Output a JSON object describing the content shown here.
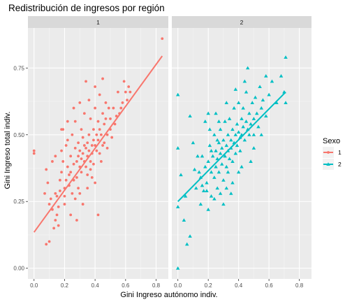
{
  "chart_data": {
    "type": "scatter",
    "title": "Redistribución de ingresos por región",
    "xlabel": "Gini Ingreso autónomo indiv.",
    "ylabel": "Gini Ingreso total indiv.",
    "xlim": [
      -0.04,
      0.88
    ],
    "ylim": [
      -0.04,
      0.9
    ],
    "xticks": [
      0.0,
      0.2,
      0.4,
      0.6,
      0.8
    ],
    "xtick_labels": [
      "0.0",
      "0.2",
      "0.4",
      "0.6",
      "0.8"
    ],
    "yticks": [
      0.0,
      0.25,
      0.5,
      0.75
    ],
    "ytick_labels": [
      "0.00",
      "0.25",
      "0.50",
      "0.75"
    ],
    "grid": true,
    "legend": {
      "title": "Sexo",
      "position": "right",
      "entries": [
        {
          "label": "1",
          "color": "#F8766D",
          "shape": "circle"
        },
        {
          "label": "2",
          "color": "#00BFC4",
          "shape": "triangle"
        }
      ]
    },
    "panels": [
      {
        "strip": "1",
        "series": "1",
        "color": "#F8766D",
        "shape": "circle",
        "fit_line": {
          "x": [
            0.0,
            0.84
          ],
          "y": [
            0.135,
            0.795
          ]
        },
        "points": [
          [
            0.0,
            0.44
          ],
          [
            0.0,
            0.43
          ],
          [
            0.07,
            0.28
          ],
          [
            0.08,
            0.09
          ],
          [
            0.1,
            0.1
          ],
          [
            0.08,
            0.37
          ],
          [
            0.09,
            0.32
          ],
          [
            0.1,
            0.24
          ],
          [
            0.11,
            0.26
          ],
          [
            0.12,
            0.4
          ],
          [
            0.12,
            0.22
          ],
          [
            0.13,
            0.15
          ],
          [
            0.14,
            0.18
          ],
          [
            0.14,
            0.28
          ],
          [
            0.15,
            0.2
          ],
          [
            0.15,
            0.27
          ],
          [
            0.16,
            0.23
          ],
          [
            0.16,
            0.16
          ],
          [
            0.17,
            0.29
          ],
          [
            0.17,
            0.33
          ],
          [
            0.18,
            0.44
          ],
          [
            0.18,
            0.36
          ],
          [
            0.19,
            0.52
          ],
          [
            0.19,
            0.4
          ],
          [
            0.2,
            0.3
          ],
          [
            0.2,
            0.24
          ],
          [
            0.21,
            0.33
          ],
          [
            0.21,
            0.46
          ],
          [
            0.22,
            0.48
          ],
          [
            0.22,
            0.38
          ],
          [
            0.23,
            0.31
          ],
          [
            0.23,
            0.35
          ],
          [
            0.24,
            0.36
          ],
          [
            0.24,
            0.42
          ],
          [
            0.25,
            0.28
          ],
          [
            0.25,
            0.5
          ],
          [
            0.26,
            0.39
          ],
          [
            0.26,
            0.33
          ],
          [
            0.27,
            0.45
          ],
          [
            0.27,
            0.55
          ],
          [
            0.28,
            0.4
          ],
          [
            0.28,
            0.34
          ],
          [
            0.29,
            0.42
          ],
          [
            0.29,
            0.47
          ],
          [
            0.3,
            0.38
          ],
          [
            0.3,
            0.44
          ],
          [
            0.31,
            0.52
          ],
          [
            0.31,
            0.36
          ],
          [
            0.32,
            0.43
          ],
          [
            0.32,
            0.49
          ],
          [
            0.33,
            0.4
          ],
          [
            0.33,
            0.58
          ],
          [
            0.34,
            0.45
          ],
          [
            0.34,
            0.38
          ],
          [
            0.35,
            0.47
          ],
          [
            0.35,
            0.42
          ],
          [
            0.36,
            0.5
          ],
          [
            0.36,
            0.44
          ],
          [
            0.37,
            0.4
          ],
          [
            0.37,
            0.56
          ],
          [
            0.38,
            0.46
          ],
          [
            0.38,
            0.43
          ],
          [
            0.39,
            0.48
          ],
          [
            0.39,
            0.52
          ],
          [
            0.4,
            0.46
          ],
          [
            0.4,
            0.6
          ],
          [
            0.41,
            0.5
          ],
          [
            0.41,
            0.44
          ],
          [
            0.42,
            0.55
          ],
          [
            0.42,
            0.48
          ],
          [
            0.43,
            0.52
          ],
          [
            0.43,
            0.65
          ],
          [
            0.44,
            0.5
          ],
          [
            0.45,
            0.58
          ],
          [
            0.45,
            0.46
          ],
          [
            0.46,
            0.54
          ],
          [
            0.47,
            0.62
          ],
          [
            0.48,
            0.5
          ],
          [
            0.48,
            0.45
          ],
          [
            0.5,
            0.56
          ],
          [
            0.5,
            0.52
          ],
          [
            0.52,
            0.6
          ],
          [
            0.53,
            0.54
          ],
          [
            0.55,
            0.66
          ],
          [
            0.56,
            0.58
          ],
          [
            0.58,
            0.62
          ],
          [
            0.6,
            0.66
          ],
          [
            0.61,
            0.63
          ],
          [
            0.62,
            0.68
          ],
          [
            0.28,
            0.18
          ],
          [
            0.24,
            0.2
          ],
          [
            0.2,
            0.27
          ],
          [
            0.3,
            0.28
          ],
          [
            0.32,
            0.24
          ],
          [
            0.35,
            0.3
          ],
          [
            0.38,
            0.34
          ],
          [
            0.4,
            0.32
          ],
          [
            0.44,
            0.4
          ],
          [
            0.26,
            0.6
          ],
          [
            0.3,
            0.62
          ],
          [
            0.36,
            0.63
          ],
          [
            0.34,
            0.7
          ],
          [
            0.4,
            0.68
          ],
          [
            0.45,
            0.71
          ],
          [
            0.42,
            0.2
          ],
          [
            0.84,
            0.86
          ],
          [
            0.14,
            0.42
          ],
          [
            0.18,
            0.52
          ],
          [
            0.22,
            0.55
          ],
          [
            0.33,
            0.46
          ],
          [
            0.37,
            0.37
          ],
          [
            0.46,
            0.47
          ],
          [
            0.51,
            0.49
          ],
          [
            0.29,
            0.3
          ],
          [
            0.27,
            0.26
          ],
          [
            0.31,
            0.41
          ],
          [
            0.35,
            0.35
          ],
          [
            0.39,
            0.39
          ],
          [
            0.43,
            0.43
          ],
          [
            0.47,
            0.56
          ],
          [
            0.49,
            0.6
          ],
          [
            0.54,
            0.57
          ],
          [
            0.57,
            0.6
          ],
          [
            0.59,
            0.7
          ],
          [
            0.63,
            0.66
          ]
        ]
      },
      {
        "strip": "2",
        "series": "2",
        "color": "#00BFC4",
        "shape": "triangle",
        "fit_line": {
          "x": [
            0.0,
            0.71
          ],
          "y": [
            0.25,
            0.66
          ]
        },
        "points": [
          [
            0.0,
            0.0
          ],
          [
            0.0,
            0.65
          ],
          [
            0.0,
            0.45
          ],
          [
            0.0,
            0.23
          ],
          [
            0.02,
            0.35
          ],
          [
            0.04,
            0.18
          ],
          [
            0.05,
            0.27
          ],
          [
            0.06,
            0.09
          ],
          [
            0.08,
            0.12
          ],
          [
            0.08,
            0.57
          ],
          [
            0.1,
            0.47
          ],
          [
            0.12,
            0.3
          ],
          [
            0.14,
            0.36
          ],
          [
            0.15,
            0.24
          ],
          [
            0.16,
            0.31
          ],
          [
            0.16,
            0.42
          ],
          [
            0.17,
            0.29
          ],
          [
            0.18,
            0.38
          ],
          [
            0.18,
            0.55
          ],
          [
            0.19,
            0.32
          ],
          [
            0.2,
            0.4
          ],
          [
            0.2,
            0.22
          ],
          [
            0.21,
            0.46
          ],
          [
            0.22,
            0.36
          ],
          [
            0.22,
            0.27
          ],
          [
            0.23,
            0.42
          ],
          [
            0.24,
            0.34
          ],
          [
            0.24,
            0.5
          ],
          [
            0.25,
            0.38
          ],
          [
            0.25,
            0.44
          ],
          [
            0.26,
            0.3
          ],
          [
            0.26,
            0.41
          ],
          [
            0.27,
            0.47
          ],
          [
            0.27,
            0.36
          ],
          [
            0.28,
            0.43
          ],
          [
            0.28,
            0.52
          ],
          [
            0.29,
            0.39
          ],
          [
            0.29,
            0.45
          ],
          [
            0.3,
            0.33
          ],
          [
            0.3,
            0.48
          ],
          [
            0.31,
            0.42
          ],
          [
            0.31,
            0.55
          ],
          [
            0.32,
            0.46
          ],
          [
            0.32,
            0.38
          ],
          [
            0.33,
            0.5
          ],
          [
            0.33,
            0.44
          ],
          [
            0.34,
            0.41
          ],
          [
            0.34,
            0.56
          ],
          [
            0.35,
            0.48
          ],
          [
            0.35,
            0.45
          ],
          [
            0.36,
            0.52
          ],
          [
            0.36,
            0.4
          ],
          [
            0.37,
            0.47
          ],
          [
            0.37,
            0.6
          ],
          [
            0.38,
            0.5
          ],
          [
            0.38,
            0.43
          ],
          [
            0.39,
            0.54
          ],
          [
            0.39,
            0.46
          ],
          [
            0.4,
            0.51
          ],
          [
            0.4,
            0.62
          ],
          [
            0.41,
            0.49
          ],
          [
            0.41,
            0.44
          ],
          [
            0.42,
            0.56
          ],
          [
            0.42,
            0.5
          ],
          [
            0.43,
            0.53
          ],
          [
            0.43,
            0.6
          ],
          [
            0.44,
            0.48
          ],
          [
            0.45,
            0.55
          ],
          [
            0.45,
            0.66
          ],
          [
            0.46,
            0.52
          ],
          [
            0.47,
            0.58
          ],
          [
            0.47,
            0.5
          ],
          [
            0.48,
            0.54
          ],
          [
            0.49,
            0.62
          ],
          [
            0.5,
            0.56
          ],
          [
            0.5,
            0.5
          ],
          [
            0.51,
            0.64
          ],
          [
            0.52,
            0.58
          ],
          [
            0.53,
            0.53
          ],
          [
            0.54,
            0.68
          ],
          [
            0.55,
            0.6
          ],
          [
            0.56,
            0.63
          ],
          [
            0.58,
            0.57
          ],
          [
            0.6,
            0.65
          ],
          [
            0.62,
            0.7
          ],
          [
            0.65,
            0.62
          ],
          [
            0.68,
            0.72
          ],
          [
            0.7,
            0.66
          ],
          [
            0.71,
            0.79
          ],
          [
            0.71,
            0.62
          ],
          [
            0.46,
            0.75
          ],
          [
            0.58,
            0.72
          ],
          [
            0.15,
            0.34
          ],
          [
            0.24,
            0.26
          ],
          [
            0.28,
            0.28
          ],
          [
            0.32,
            0.3
          ],
          [
            0.36,
            0.32
          ],
          [
            0.3,
            0.24
          ],
          [
            0.35,
            0.28
          ],
          [
            0.4,
            0.36
          ],
          [
            0.2,
            0.58
          ],
          [
            0.25,
            0.58
          ],
          [
            0.32,
            0.62
          ],
          [
            0.38,
            0.67
          ],
          [
            0.44,
            0.7
          ],
          [
            0.21,
            0.52
          ],
          [
            0.27,
            0.55
          ],
          [
            0.5,
            0.45
          ],
          [
            0.55,
            0.5
          ],
          [
            0.48,
            0.4
          ],
          [
            0.42,
            0.38
          ],
          [
            0.11,
            0.37
          ],
          [
            0.13,
            0.42
          ],
          [
            0.33,
            0.36
          ],
          [
            0.26,
            0.48
          ],
          [
            0.22,
            0.44
          ],
          [
            0.19,
            0.29
          ]
        ]
      }
    ]
  }
}
